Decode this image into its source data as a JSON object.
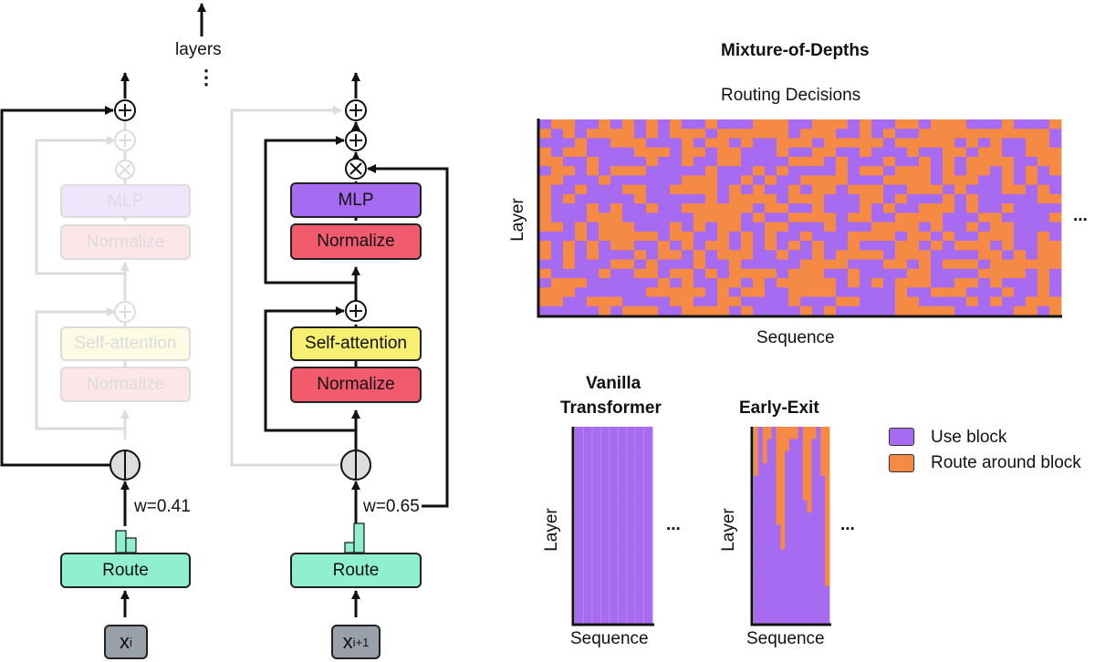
{
  "labels": {
    "layers": "layers",
    "dots": "⋮",
    "mlp": "MLP",
    "normalize": "Normalize",
    "self_attention": "Self-attention",
    "route": "Route",
    "x_i": "x",
    "x_i_sub": "i",
    "x_i1": "x",
    "x_i1_sub": "i+1",
    "w_left": "w=0.41",
    "w_right": "w=0.65"
  },
  "mod": {
    "title": "Mixture-of-Depths",
    "subtitle": "Routing Decisions",
    "ylabel": "Layer",
    "xlabel": "Sequence",
    "ellipsis": "..."
  },
  "vanilla": {
    "title_line1": "Vanilla",
    "title_line2": "Transformer",
    "ylabel": "Layer",
    "xlabel": "Sequence",
    "ellipsis": "..."
  },
  "early": {
    "title": "Early-Exit",
    "ylabel": "Layer",
    "xlabel": "Sequence",
    "ellipsis": "..."
  },
  "legend": {
    "use": "Use block",
    "route": "Route around block"
  },
  "colors": {
    "use": "#a66bf0",
    "route": "#f58a45",
    "router": "#8fefd0"
  },
  "early_exit_depths": [
    12,
    16,
    13,
    15,
    16,
    8,
    6,
    14,
    15,
    15,
    16,
    10,
    9,
    15,
    16,
    12,
    3
  ],
  "routing_grid": [
    "10011010101011011100011000101100100011101110",
    "01010000101000100000010001101011000000000001",
    "11101100011101001011000100000100000101011001",
    "01001111000100100111011001101110110010011000",
    "00110111101101100111100010111011010100001100",
    "10010100011111011101011110100100010100101010",
    "00111011111100011010110000111000010001101011",
    "01101110011000010101101001000110001011100101",
    "01011111011111010000100011100101110101111100",
    "01110101101100000010011011101011000101101111",
    "01110001111110000101100001001100001110011110",
    "00101000111010100110011101110000101101001111",
    "11101000001001101010110111000010010110001101",
    "01010100110101001010101011011100101000101100",
    "01010111010010100011011010000100011110010100",
    "11011100101110110111110000111001010001000000",
    "01111011001001010000100011011110011110000101",
    "10001111110101100101000001010100011001011101",
    "00011111100000101001100001111101100011101101",
    "00110001111001100111101110011100111101011000",
    "11111010001100001011110101111100000111110010"
  ]
}
